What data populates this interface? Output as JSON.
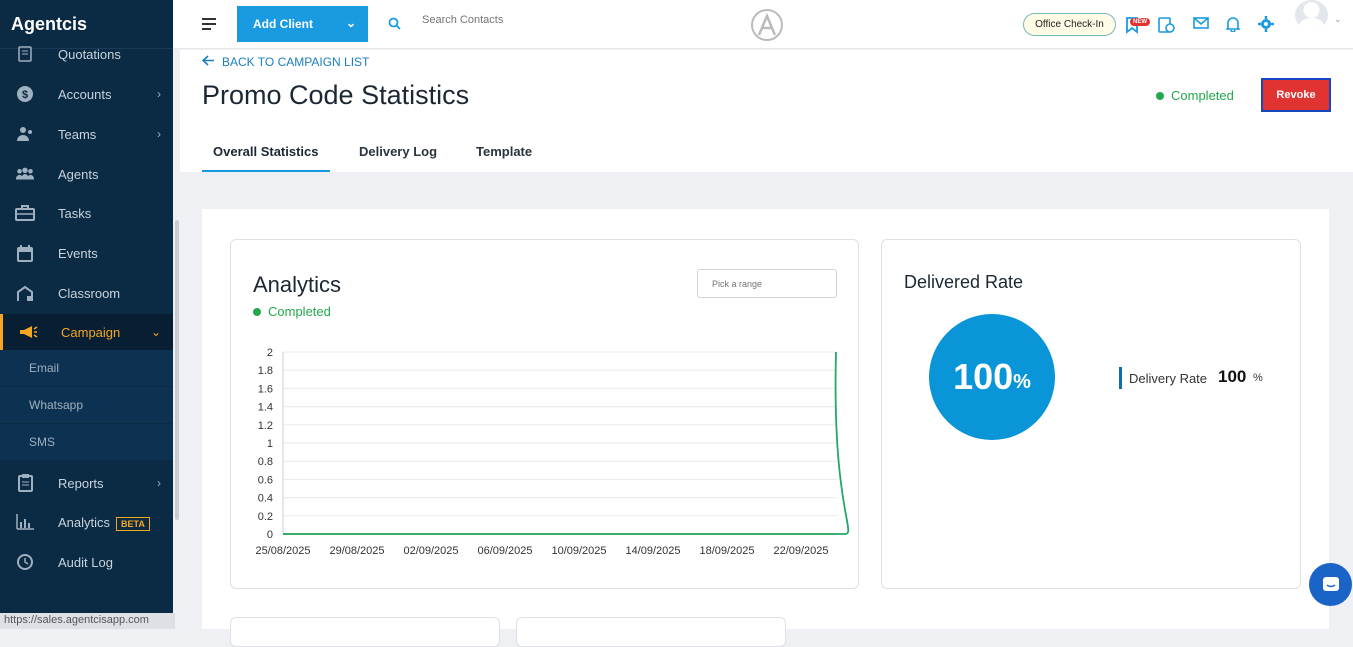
{
  "sidebar": {
    "brand": "Agentcis",
    "items": [
      {
        "label": "Quotations",
        "icon": "document-icon",
        "chevron": false
      },
      {
        "label": "Accounts",
        "icon": "dollar-icon",
        "chevron": true
      },
      {
        "label": "Teams",
        "icon": "team-icon",
        "chevron": true
      },
      {
        "label": "Agents",
        "icon": "agents-icon",
        "chevron": false
      },
      {
        "label": "Tasks",
        "icon": "briefcase-icon",
        "chevron": false
      },
      {
        "label": "Events",
        "icon": "calendar-icon",
        "chevron": false
      },
      {
        "label": "Classroom",
        "icon": "classroom-icon",
        "chevron": false
      },
      {
        "label": "Campaign",
        "icon": "megaphone-icon",
        "chevron": true
      },
      {
        "label": "Reports",
        "icon": "clipboard-icon",
        "chevron": true
      },
      {
        "label": "Analytics",
        "icon": "chart-icon",
        "badge": "BETA"
      },
      {
        "label": "Audit Log",
        "icon": "audit-icon",
        "chevron": false
      }
    ],
    "subitems": [
      "Email",
      "Whatsapp",
      "SMS"
    ],
    "status_url": "https://sales.agentcisapp.com"
  },
  "topbar": {
    "add_client": "Add Client",
    "search_placeholder": "Search Contacts",
    "office_checkin": "Office Check-In",
    "new_badge": "NEW"
  },
  "header": {
    "back": "BACK TO CAMPAIGN LIST",
    "title": "Promo Code Statistics",
    "status": "Completed",
    "revoke": "Revoke",
    "tabs": [
      "Overall Statistics",
      "Delivery Log",
      "Template"
    ]
  },
  "analytics": {
    "title": "Analytics",
    "status": "Completed",
    "range_placeholder": "Pick a range"
  },
  "delivered": {
    "title": "Delivered Rate",
    "rate_value": "100",
    "rate_unit": "%",
    "legend_label": "Delivery Rate",
    "legend_value": "100",
    "legend_unit": "%"
  },
  "colors": {
    "accent": "#1a9ae0",
    "sidebar": "#0b2a43",
    "active": "#f5a623",
    "success": "#22a84a",
    "danger": "#e23333"
  },
  "chart_data": {
    "type": "line",
    "x": [
      "25/08/2025",
      "29/08/2025",
      "02/09/2025",
      "06/09/2025",
      "10/09/2025",
      "14/09/2025",
      "18/09/2025",
      "22/09/2025",
      "24/09/2025"
    ],
    "xticks": [
      "25/08/2025",
      "29/08/2025",
      "02/09/2025",
      "06/09/2025",
      "10/09/2025",
      "14/09/2025",
      "18/09/2025",
      "22/09/2025"
    ],
    "series": [
      {
        "color": "#f0a020",
        "values": [
          0,
          0,
          0,
          0,
          0,
          0,
          0,
          0,
          0
        ]
      },
      {
        "color": "#22a86a",
        "values": [
          0,
          0,
          0,
          0,
          0,
          0,
          0,
          0,
          2
        ]
      }
    ],
    "yticks": [
      "2",
      "1.8",
      "1.6",
      "1.4",
      "1.2",
      "1",
      "0.8",
      "0.6",
      "0.4",
      "0.2",
      "0"
    ],
    "ylim": [
      0,
      2
    ]
  }
}
